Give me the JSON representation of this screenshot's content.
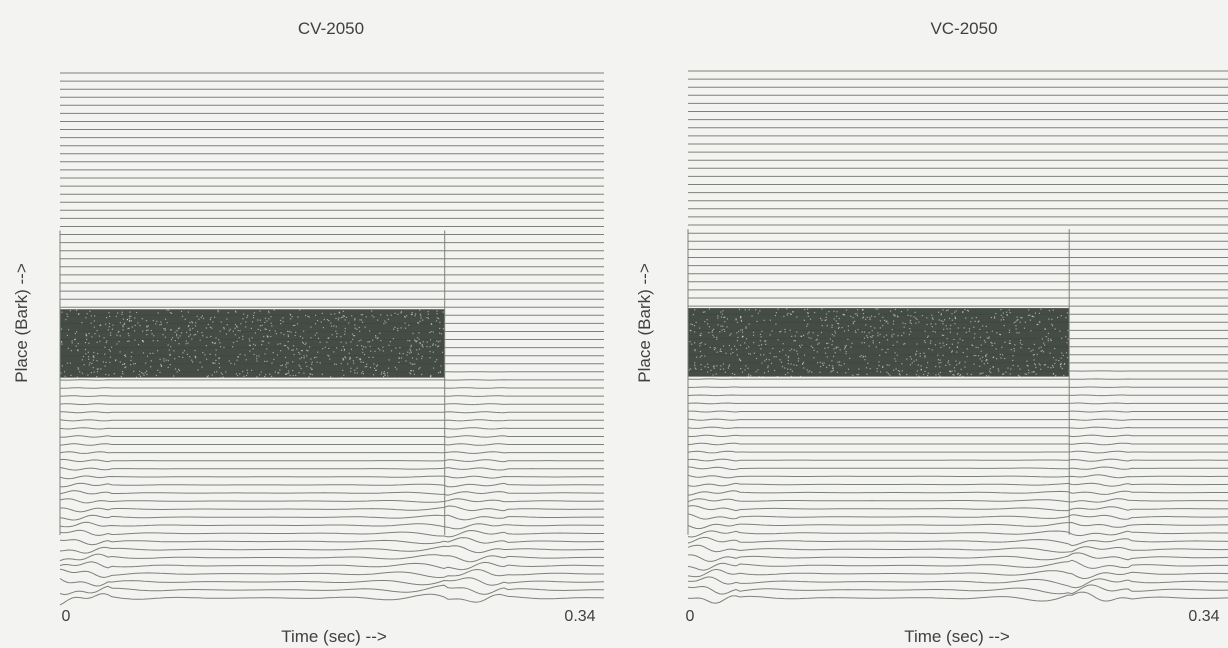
{
  "chart_data": [
    {
      "type": "cochleagram",
      "title": "CV-2050",
      "xlabel": "Time (sec) -->",
      "ylabel": "Place (Bark) -->",
      "xticks": [
        "0",
        "0.34"
      ],
      "xlim": [
        0,
        0.34
      ],
      "grid": false,
      "colors": {
        "traces": "#7c8278",
        "band": "#3d443d"
      },
      "onset_time": 0.0,
      "offset_time": 0.24,
      "dense_band": {
        "start": 0.0,
        "end": 0.24,
        "channel_fraction_from_top": [
          0.45,
          0.58
        ]
      }
    },
    {
      "type": "cochleagram",
      "title": "VC-2050",
      "xlabel": "Time (sec) -->",
      "ylabel": "Place (Bark) -->",
      "xticks": [
        "0",
        "0.34"
      ],
      "xlim": [
        0,
        0.34
      ],
      "grid": false,
      "colors": {
        "traces": "#7c8278",
        "band": "#3d443d"
      },
      "onset_time": 0.0,
      "offset_time": 0.24,
      "dense_band": {
        "start": 0.0,
        "end": 0.24,
        "channel_fraction_from_top": [
          0.45,
          0.58
        ]
      }
    }
  ]
}
